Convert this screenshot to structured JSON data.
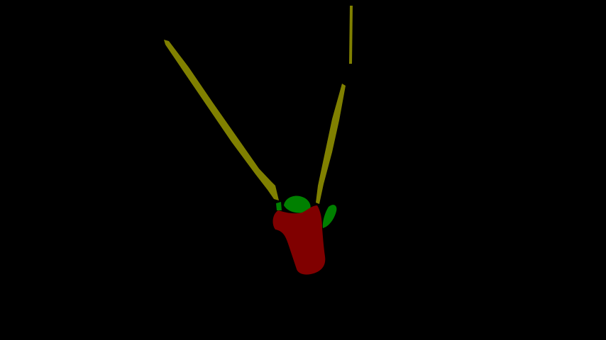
{
  "scene": {
    "background_color": "#000000",
    "segments": [
      {
        "name": "swing-ropes",
        "color": "#808000"
      },
      {
        "name": "person",
        "color": "#800000"
      },
      {
        "name": "foliage",
        "color": "#008000"
      }
    ]
  }
}
